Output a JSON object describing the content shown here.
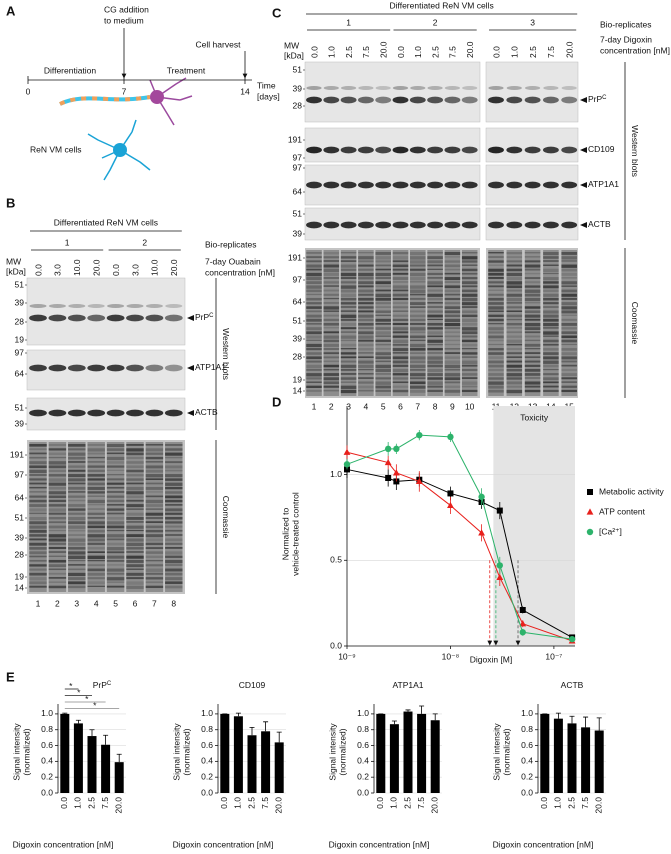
{
  "panel_a": {
    "label": "A",
    "event_1_lines": [
      "CG addition",
      "to medium"
    ],
    "event_2": "Cell harvest",
    "phase_1": "Differentiation",
    "phase_2": "Treatment",
    "time_ticks": [
      "0",
      "7",
      "14"
    ],
    "axis_label_lines": [
      "Time",
      "[days]"
    ],
    "cells_label": "ReN VM cells"
  },
  "panel_b": {
    "label": "B",
    "header": "Differentiated ReN VM cells",
    "replicate_title": "Bio-replicates",
    "replicates": [
      "1",
      "2"
    ],
    "concentration_title_lines": [
      "7-day Ouabain",
      "concentration [nM]"
    ],
    "concentrations": [
      "0.0",
      "3.0",
      "10.0",
      "20.0",
      "0.0",
      "3.0",
      "10.0",
      "20.0"
    ],
    "mw_title_lines": [
      "MW",
      "[kDa]"
    ],
    "blots": [
      {
        "label": {
          "text": "PrP",
          "sup": "C"
        },
        "mw": [
          "51",
          "39",
          "28",
          "19"
        ]
      },
      {
        "label": {
          "text": "ATP1A1"
        },
        "mw": [
          "97",
          "64"
        ]
      },
      {
        "label": {
          "text": "ACTB"
        },
        "mw": [
          "51",
          "39"
        ]
      }
    ],
    "coomassie_mw": [
      "191",
      "97",
      "64",
      "51",
      "39",
      "28",
      "19",
      "14"
    ],
    "lanes": [
      "1",
      "2",
      "3",
      "4",
      "5",
      "6",
      "7",
      "8"
    ],
    "western_label": "Western blots",
    "coomassie_label": "Coomassie"
  },
  "panel_c": {
    "label": "C",
    "header": "Differentiated ReN VM cells",
    "replicate_title": "Bio-replicates",
    "replicates": [
      "1",
      "2",
      "3"
    ],
    "concentration_title_lines": [
      "7-day Digoxin",
      "concentration [nM]"
    ],
    "concentrations": [
      "0.0",
      "1.0",
      "2.5",
      "7.5",
      "20.0",
      "0.0",
      "1.0",
      "2.5",
      "7.5",
      "20.0",
      "0.0",
      "1.0",
      "2.5",
      "7.5",
      "20.0"
    ],
    "mw_title_lines": [
      "MW",
      "[kDa]"
    ],
    "blots": [
      {
        "label": {
          "text": "PrP",
          "sup": "C"
        },
        "mw": [
          "51",
          "39",
          "28"
        ]
      },
      {
        "label": {
          "text": "CD109"
        },
        "mw": [
          "191",
          "97"
        ]
      },
      {
        "label": {
          "text": "ATP1A1"
        },
        "mw": [
          "97",
          "64"
        ]
      },
      {
        "label": {
          "text": "ACTB"
        },
        "mw": [
          "51",
          "39"
        ]
      }
    ],
    "coomassie_mw": [
      "191",
      "97",
      "64",
      "51",
      "39",
      "28",
      "19",
      "14"
    ],
    "lanes": [
      "1",
      "2",
      "3",
      "4",
      "5",
      "6",
      "7",
      "8",
      "9",
      "10",
      "11",
      "12",
      "13",
      "14",
      "15"
    ],
    "western_label": "Western blots",
    "coomassie_label": "Coomassie"
  },
  "panel_d": {
    "label": "D"
  },
  "panel_e": {
    "label": "E"
  },
  "chart_data": [
    {
      "type": "line",
      "xscale": "log",
      "xlabel": "Digoxin [M]",
      "ylabel_lines": [
        "Normalized to",
        "vehicle-treated control"
      ],
      "x": [
        1e-09,
        2.5e-09,
        3e-09,
        5e-09,
        1e-08,
        2e-08,
        3e-08,
        5e-08,
        1.5e-07
      ],
      "xlim": [
        1e-09,
        1.6e-07
      ],
      "xticks": [
        {
          "value": 1e-09,
          "label": "10⁻⁹"
        },
        {
          "value": 1e-08,
          "label": "10⁻⁸"
        },
        {
          "value": 1e-07,
          "label": "10⁻⁷"
        }
      ],
      "ylim": [
        0,
        1.4
      ],
      "yticks": [
        {
          "value": 0,
          "label": "0.0"
        },
        {
          "value": 0.5,
          "label": "0.5"
        },
        {
          "value": 1,
          "label": "1.0"
        }
      ],
      "grid": true,
      "legend": "right",
      "shaded_region": {
        "from": 2.6e-08,
        "to": 1.6e-07,
        "label": "Toxicity",
        "color": "#e4e4e4"
      },
      "reference_lines": [
        {
          "x": 2.4e-08,
          "y": 0.5,
          "color": "#e8201c"
        },
        {
          "x": 2.75e-08,
          "y": 0.5,
          "color": "#2db36b"
        },
        {
          "x": 4.5e-08,
          "y": 0.5,
          "color": "#555555"
        }
      ],
      "series": [
        {
          "name": "Metabolic activity",
          "color": "#000000",
          "marker": "square",
          "values": [
            1.03,
            0.98,
            0.96,
            0.97,
            0.89,
            0.84,
            0.79,
            0.21,
            0.05
          ],
          "errors": [
            0.05,
            0.05,
            0.05,
            0.04,
            0.04,
            0.04,
            0.05,
            0.02,
            0.01
          ]
        },
        {
          "name": "ATP content",
          "color": "#e8201c",
          "marker": "triangle",
          "values": [
            1.13,
            1.07,
            1.01,
            0.96,
            0.82,
            0.66,
            0.4,
            0.13,
            0.03
          ],
          "errors": [
            0.04,
            0.04,
            0.05,
            0.06,
            0.05,
            0.05,
            0.05,
            0.02,
            0.01
          ]
        },
        {
          "name": "[Ca²⁺]",
          "color": "#2db36b",
          "marker": "circle",
          "values": [
            1.06,
            1.15,
            1.15,
            1.23,
            1.22,
            0.87,
            0.47,
            0.08,
            0.04
          ],
          "errors": [
            0.03,
            0.04,
            0.03,
            0.03,
            0.03,
            0.05,
            0.05,
            0.02,
            0.01
          ]
        }
      ]
    },
    {
      "type": "bar",
      "title": "PrP",
      "title_sup": "C",
      "categories": [
        "0.0",
        "1.0",
        "2.5",
        "7.5",
        "20.0"
      ],
      "values": [
        1.0,
        0.88,
        0.72,
        0.61,
        0.39
      ],
      "errors": [
        0.01,
        0.04,
        0.08,
        0.12,
        0.1
      ],
      "color": "#000000",
      "ylim": [
        0,
        1.1
      ],
      "yticks": [
        {
          "value": 0,
          "label": "0.0"
        },
        {
          "value": 0.2,
          "label": "0.2"
        },
        {
          "value": 0.4,
          "label": "0.4"
        },
        {
          "value": 0.6,
          "label": "0.6"
        },
        {
          "value": 0.8,
          "label": "0.8"
        },
        {
          "value": 1,
          "label": "1.0"
        }
      ],
      "grid": true,
      "xlabel": "Digoxin concentration [nM]",
      "ylabel_lines": [
        "Signal intensity",
        "(normalized)"
      ],
      "significance": [
        {
          "pair": [
            "0.0",
            "1.0"
          ],
          "label": "*"
        },
        {
          "pair": [
            "0.0",
            "2.5"
          ],
          "label": "*"
        },
        {
          "pair": [
            "0.0",
            "7.5"
          ],
          "label": "*"
        },
        {
          "pair": [
            "0.0",
            "20.0"
          ],
          "label": "*"
        }
      ]
    },
    {
      "type": "bar",
      "title": "CD109",
      "categories": [
        "0.0",
        "1.0",
        "2.5",
        "7.5",
        "20.0"
      ],
      "values": [
        1.0,
        0.97,
        0.73,
        0.78,
        0.64
      ],
      "errors": [
        0.0,
        0.04,
        0.1,
        0.12,
        0.13
      ],
      "color": "#000000",
      "ylim": [
        0,
        1.1
      ],
      "yticks": [
        {
          "value": 0,
          "label": "0.0"
        },
        {
          "value": 0.2,
          "label": "0.2"
        },
        {
          "value": 0.4,
          "label": "0.4"
        },
        {
          "value": 0.6,
          "label": "0.6"
        },
        {
          "value": 0.8,
          "label": "0.8"
        },
        {
          "value": 1,
          "label": "1.0"
        }
      ],
      "grid": true,
      "xlabel": "Digoxin concentration [nM]",
      "ylabel_lines": [
        "Signal intensity",
        "(normalized)"
      ]
    },
    {
      "type": "bar",
      "title": "ATP1A1",
      "categories": [
        "0.0",
        "1.0",
        "2.5",
        "7.5",
        "20.0"
      ],
      "values": [
        1.0,
        0.87,
        1.03,
        1.0,
        0.92
      ],
      "errors": [
        0.0,
        0.04,
        0.02,
        0.1,
        0.08
      ],
      "color": "#000000",
      "ylim": [
        0,
        1.1
      ],
      "yticks": [
        {
          "value": 0,
          "label": "0.0"
        },
        {
          "value": 0.2,
          "label": "0.2"
        },
        {
          "value": 0.4,
          "label": "0.4"
        },
        {
          "value": 0.6,
          "label": "0.6"
        },
        {
          "value": 0.8,
          "label": "0.8"
        },
        {
          "value": 1,
          "label": "1.0"
        }
      ],
      "grid": true,
      "xlabel": "Digoxin concentration [nM]",
      "ylabel_lines": [
        "Signal intensity",
        "(normalized)"
      ]
    },
    {
      "type": "bar",
      "title": "ACTB",
      "categories": [
        "0.0",
        "1.0",
        "2.5",
        "7.5",
        "20.0"
      ],
      "values": [
        1.0,
        0.94,
        0.88,
        0.83,
        0.79
      ],
      "errors": [
        0.0,
        0.07,
        0.09,
        0.13,
        0.16
      ],
      "color": "#000000",
      "ylim": [
        0,
        1.1
      ],
      "yticks": [
        {
          "value": 0,
          "label": "0.0"
        },
        {
          "value": 0.2,
          "label": "0.2"
        },
        {
          "value": 0.4,
          "label": "0.4"
        },
        {
          "value": 0.6,
          "label": "0.6"
        },
        {
          "value": 0.8,
          "label": "0.8"
        },
        {
          "value": 1,
          "label": "1.0"
        }
      ],
      "grid": true,
      "xlabel": "Digoxin concentration [nM]",
      "ylabel_lines": [
        "Signal intensity",
        "(normalized)"
      ]
    }
  ]
}
